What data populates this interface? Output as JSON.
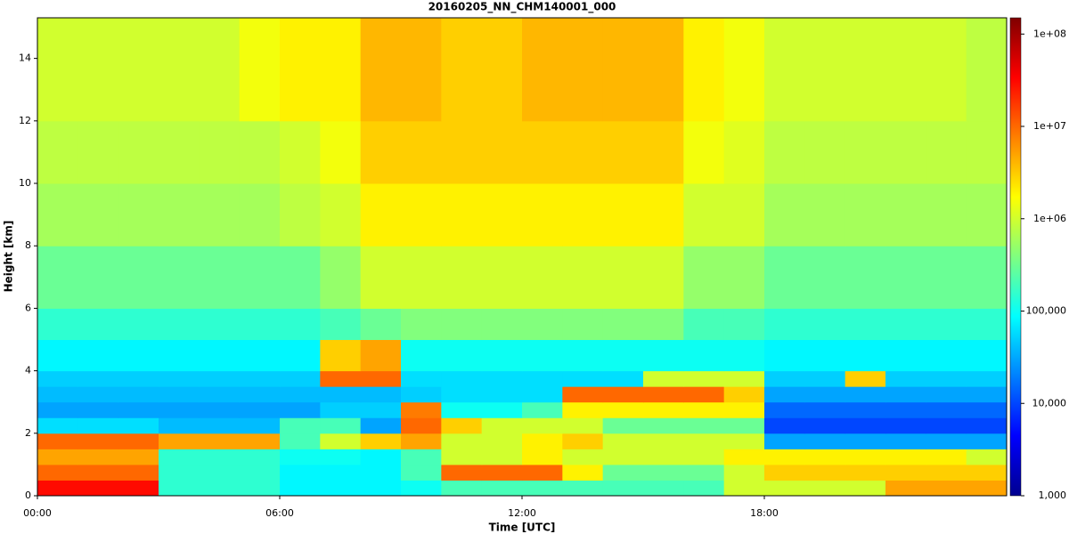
{
  "chart_data": {
    "type": "heatmap",
    "title": "20160205_NN_CHM140001_000",
    "xlabel": "Time [UTC]",
    "ylabel": "Height [km]",
    "x": [
      0,
      1,
      2,
      3,
      4,
      5,
      6,
      7,
      8,
      9,
      10,
      11,
      12,
      13,
      14,
      15,
      16,
      17,
      18,
      19,
      20,
      21,
      22,
      23,
      24
    ],
    "y": [
      0,
      0.5,
      1,
      1.5,
      2,
      2.5,
      3,
      3.5,
      4,
      5,
      6,
      8,
      10,
      12,
      15.3
    ],
    "z": [
      [
        30000000.0,
        30000000.0,
        30000000.0,
        150000.0,
        150000.0,
        150000.0,
        80000.0,
        80000.0,
        80000.0,
        100000.0,
        200000.0,
        200000.0,
        200000.0,
        200000.0,
        200000.0,
        200000.0,
        200000.0,
        1000000.0,
        1000000.0,
        1000000.0,
        1000000.0,
        5000000.0,
        5000000.0,
        5000000.0
      ],
      [
        10000000.0,
        10000000.0,
        10000000.0,
        150000.0,
        150000.0,
        150000.0,
        80000.0,
        80000.0,
        80000.0,
        200000.0,
        10000000.0,
        10000000.0,
        10000000.0,
        2000000.0,
        300000.0,
        300000.0,
        300000.0,
        1000000.0,
        3000000.0,
        3000000.0,
        3000000.0,
        3000000.0,
        3000000.0,
        3000000.0
      ],
      [
        5000000.0,
        5000000.0,
        5000000.0,
        150000.0,
        150000.0,
        150000.0,
        100000.0,
        100000.0,
        80000.0,
        200000.0,
        1000000.0,
        1000000.0,
        2000000.0,
        1000000.0,
        1000000.0,
        1000000.0,
        1000000.0,
        2000000.0,
        2000000.0,
        2000000.0,
        2000000.0,
        2000000.0,
        2000000.0,
        1000000.0
      ],
      [
        10000000.0,
        10000000.0,
        10000000.0,
        5000000.0,
        5000000.0,
        5000000.0,
        200000.0,
        1000000.0,
        3000000.0,
        5000000.0,
        1000000.0,
        1000000.0,
        2000000.0,
        3000000.0,
        1000000.0,
        1000000.0,
        1000000.0,
        1000000.0,
        30000.0,
        30000.0,
        30000.0,
        30000.0,
        30000.0,
        30000.0
      ],
      [
        60000.0,
        60000.0,
        60000.0,
        40000.0,
        40000.0,
        40000.0,
        200000.0,
        200000.0,
        30000.0,
        10000000.0,
        3000000.0,
        1000000.0,
        1000000.0,
        1000000.0,
        300000.0,
        300000.0,
        300000.0,
        300000.0,
        10000.0,
        10000.0,
        10000.0,
        10000.0,
        10000.0,
        10000.0
      ],
      [
        30000.0,
        30000.0,
        30000.0,
        30000.0,
        30000.0,
        30000.0,
        30000.0,
        50000.0,
        50000.0,
        8000000.0,
        100000.0,
        100000.0,
        200000.0,
        2000000.0,
        2000000.0,
        2000000.0,
        2000000.0,
        2000000.0,
        15000.0,
        15000.0,
        15000.0,
        15000.0,
        15000.0,
        15000.0
      ],
      [
        40000.0,
        40000.0,
        40000.0,
        40000.0,
        40000.0,
        40000.0,
        40000.0,
        40000.0,
        40000.0,
        50000.0,
        60000.0,
        60000.0,
        60000.0,
        10000000.0,
        10000000.0,
        10000000.0,
        10000000.0,
        3000000.0,
        30000.0,
        30000.0,
        30000.0,
        30000.0,
        30000.0,
        30000.0
      ],
      [
        50000.0,
        50000.0,
        50000.0,
        50000.0,
        50000.0,
        50000.0,
        50000.0,
        10000000.0,
        10000000.0,
        60000.0,
        60000.0,
        60000.0,
        60000.0,
        60000.0,
        60000.0,
        1000000.0,
        1000000.0,
        1000000.0,
        50000.0,
        50000.0,
        3000000.0,
        50000.0,
        50000.0,
        50000.0
      ],
      [
        80000.0,
        80000.0,
        80000.0,
        80000.0,
        80000.0,
        80000.0,
        80000.0,
        3000000.0,
        5000000.0,
        100000.0,
        100000.0,
        100000.0,
        100000.0,
        100000.0,
        100000.0,
        100000.0,
        100000.0,
        100000.0,
        80000.0,
        80000.0,
        80000.0,
        80000.0,
        80000.0,
        80000.0
      ],
      [
        150000.0,
        150000.0,
        150000.0,
        150000.0,
        150000.0,
        150000.0,
        150000.0,
        200000.0,
        300000.0,
        400000.0,
        400000.0,
        400000.0,
        400000.0,
        400000.0,
        400000.0,
        400000.0,
        200000.0,
        200000.0,
        150000.0,
        150000.0,
        150000.0,
        150000.0,
        150000.0,
        150000.0
      ],
      [
        300000.0,
        300000.0,
        300000.0,
        300000.0,
        300000.0,
        300000.0,
        300000.0,
        500000.0,
        1000000.0,
        1000000.0,
        1000000.0,
        1000000.0,
        1000000.0,
        1000000.0,
        1000000.0,
        1000000.0,
        500000.0,
        500000.0,
        300000.0,
        300000.0,
        300000.0,
        300000.0,
        300000.0,
        300000.0
      ],
      [
        600000.0,
        600000.0,
        600000.0,
        600000.0,
        600000.0,
        600000.0,
        800000.0,
        1000000.0,
        2000000.0,
        2000000.0,
        2000000.0,
        2000000.0,
        2000000.0,
        2000000.0,
        2000000.0,
        2000000.0,
        1000000.0,
        1000000.0,
        600000.0,
        600000.0,
        600000.0,
        600000.0,
        600000.0,
        600000.0
      ],
      [
        800000.0,
        800000.0,
        800000.0,
        800000.0,
        800000.0,
        800000.0,
        1000000.0,
        1500000.0,
        3000000.0,
        3000000.0,
        3000000.0,
        3000000.0,
        3000000.0,
        3000000.0,
        3000000.0,
        3000000.0,
        1500000.0,
        1200000.0,
        800000.0,
        800000.0,
        800000.0,
        800000.0,
        800000.0,
        800000.0
      ],
      [
        1000000.0,
        1000000.0,
        1000000.0,
        1000000.0,
        1000000.0,
        1500000.0,
        2000000.0,
        2000000.0,
        4000000.0,
        4000000.0,
        3000000.0,
        3000000.0,
        4000000.0,
        4000000.0,
        4000000.0,
        4000000.0,
        2000000.0,
        1500000.0,
        1000000.0,
        1000000.0,
        1000000.0,
        1000000.0,
        1000000.0,
        800000.0
      ]
    ],
    "xlim": [
      0,
      24
    ],
    "ylim": [
      0,
      15.3
    ],
    "xticks": [
      {
        "value": 0,
        "label": "00:00"
      },
      {
        "value": 6,
        "label": "06:00"
      },
      {
        "value": 12,
        "label": "12:00"
      },
      {
        "value": 18,
        "label": "18:00"
      }
    ],
    "yticks": [
      0,
      2,
      4,
      6,
      8,
      10,
      12,
      14
    ],
    "colormap": "jet",
    "log_scale": true,
    "zlim": [
      1000,
      150000000
    ],
    "zticks": [
      {
        "value": 1000,
        "label": "1,000"
      },
      {
        "value": 10000,
        "label": "10,000"
      },
      {
        "value": 100000,
        "label": "100,000"
      },
      {
        "value": 1000000,
        "label": "1e+06"
      },
      {
        "value": 10000000,
        "label": "1e+07"
      },
      {
        "value": 100000000,
        "label": "1e+08"
      }
    ]
  }
}
